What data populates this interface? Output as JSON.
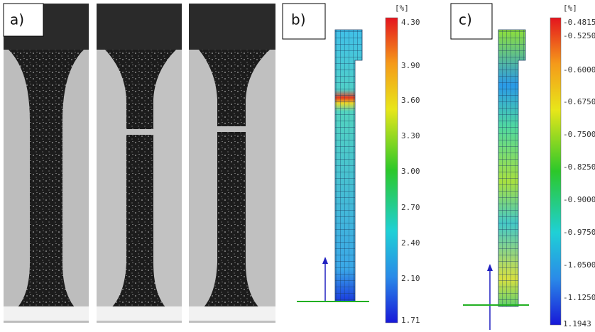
{
  "panels": {
    "a": {
      "label": "a)"
    },
    "b": {
      "label": "b)",
      "unit": "[%]",
      "ticks": [
        "4.30",
        "3.90",
        "3.60",
        "3.30",
        "3.00",
        "2.70",
        "2.40",
        "2.10",
        "1.71"
      ]
    },
    "c": {
      "label": "c)",
      "unit": "[%]",
      "ticks": [
        "-0.4815",
        "-0.5250",
        "-0.6000",
        "-0.6750",
        "-0.7500",
        "-0.8250",
        "-0.9000",
        "-0.9750",
        "-1.0500",
        "-1.1250",
        "1.1943"
      ]
    }
  }
}
